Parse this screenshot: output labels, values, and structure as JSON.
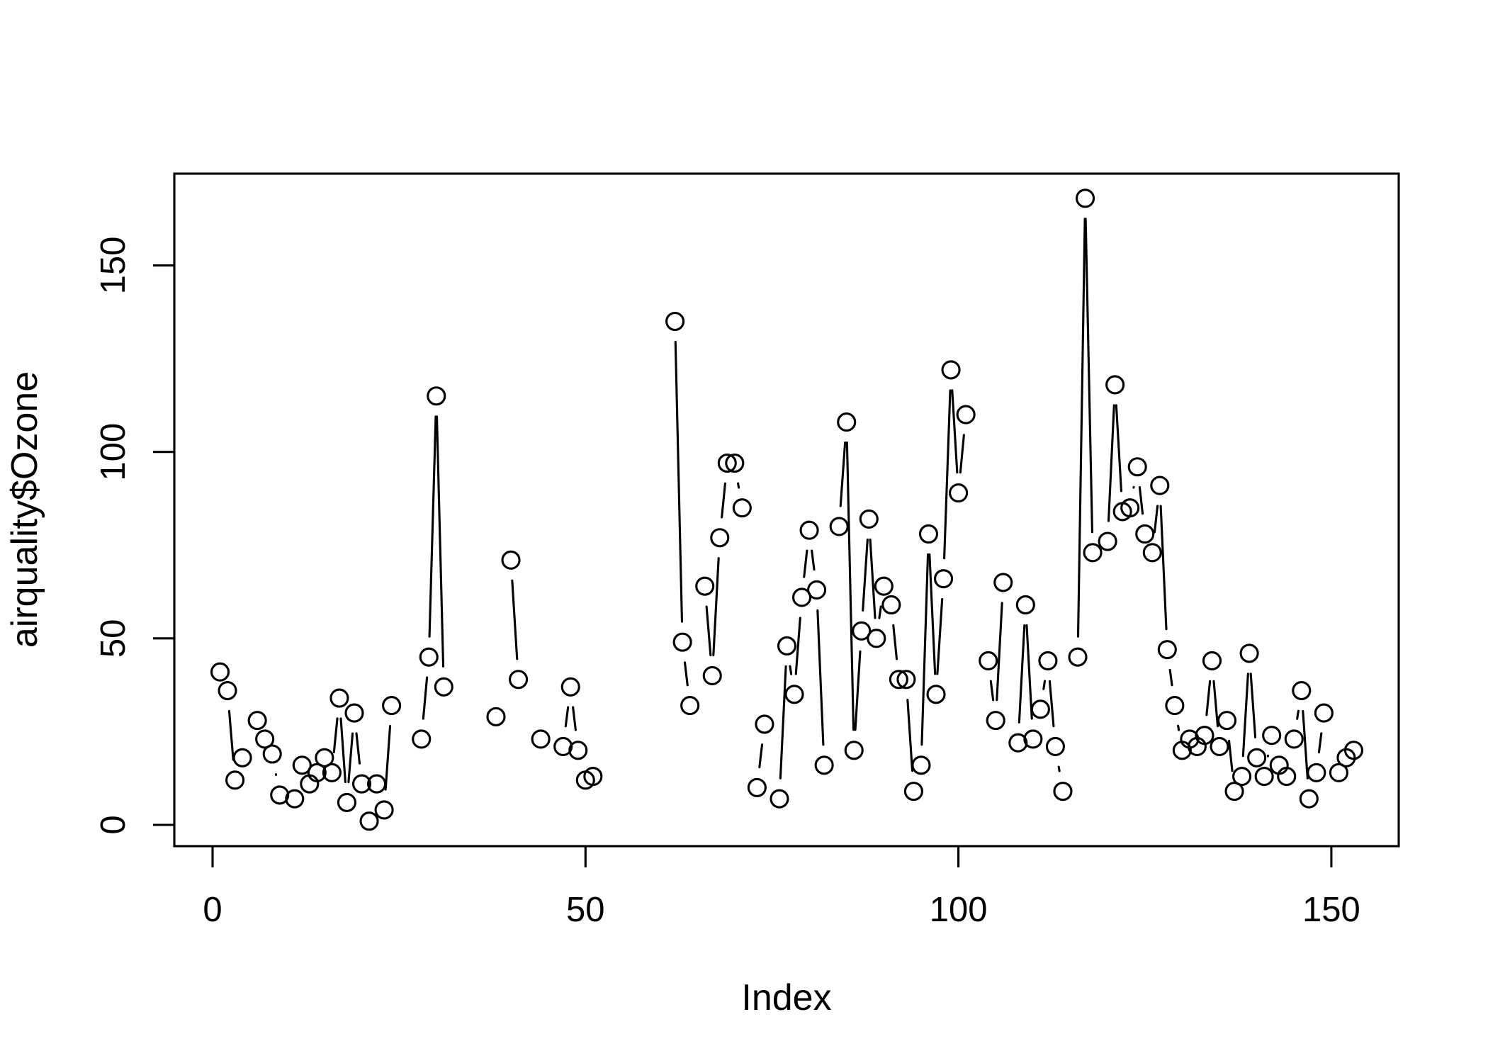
{
  "figure": {
    "background": "#ffffff",
    "stroke_color": "#000000"
  },
  "chart_data": {
    "type": "line",
    "r_plot_type": "b",
    "title": "",
    "xlabel": "Index",
    "ylabel": "airquality$Ozone",
    "x_ticks": [
      0,
      50,
      100,
      150
    ],
    "y_ticks": [
      0,
      50,
      100,
      150
    ],
    "xlim": [
      -5.08,
      159.08
    ],
    "ylim": [
      -5.68,
      174.68
    ],
    "grid": false,
    "legend": false,
    "marker": "open-circle",
    "series_name": "airquality$Ozone",
    "x_start_index": 1,
    "values": [
      41,
      36,
      12,
      18,
      null,
      28,
      23,
      19,
      8,
      null,
      7,
      16,
      11,
      14,
      18,
      14,
      34,
      6,
      30,
      11,
      1,
      11,
      4,
      32,
      null,
      null,
      null,
      23,
      45,
      115,
      37,
      null,
      null,
      null,
      null,
      null,
      null,
      29,
      null,
      71,
      39,
      null,
      null,
      23,
      null,
      null,
      21,
      37,
      20,
      12,
      13,
      null,
      null,
      null,
      null,
      null,
      null,
      null,
      null,
      null,
      null,
      135,
      49,
      32,
      null,
      64,
      40,
      77,
      97,
      97,
      85,
      null,
      10,
      27,
      null,
      7,
      48,
      35,
      61,
      79,
      63,
      16,
      null,
      80,
      108,
      20,
      52,
      82,
      50,
      64,
      59,
      39,
      39,
      9,
      16,
      78,
      35,
      66,
      122,
      89,
      110,
      null,
      null,
      44,
      28,
      65,
      null,
      22,
      59,
      23,
      31,
      44,
      21,
      9,
      null,
      45,
      168,
      73,
      null,
      76,
      118,
      84,
      85,
      96,
      78,
      73,
      91,
      47,
      32,
      20,
      23,
      21,
      24,
      44,
      21,
      28,
      9,
      13,
      46,
      18,
      13,
      24,
      16,
      13,
      23,
      36,
      7,
      14,
      30,
      null,
      14,
      18,
      20
    ]
  }
}
